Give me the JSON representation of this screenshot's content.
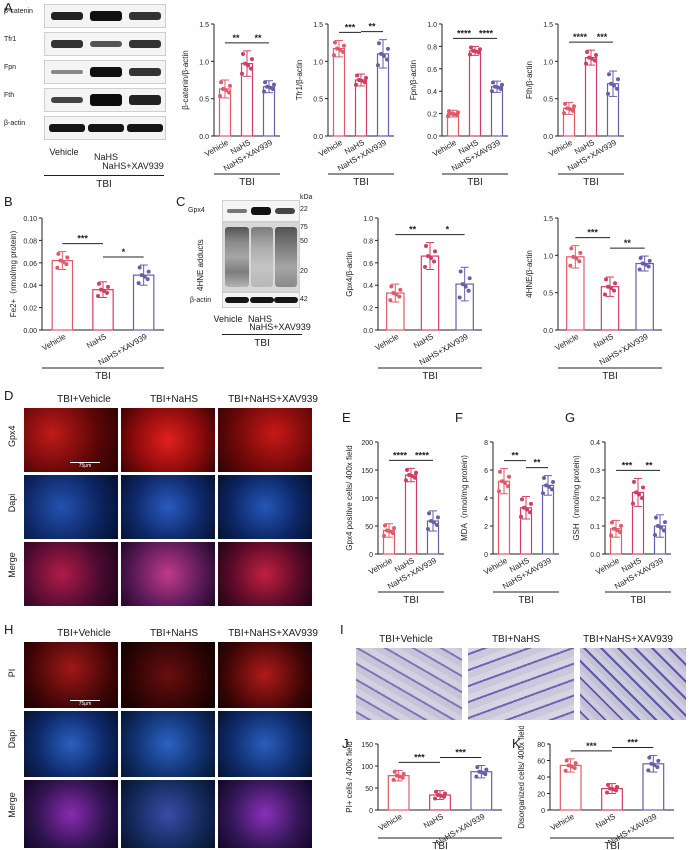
{
  "panel_letters": [
    "A",
    "B",
    "C",
    "D",
    "E",
    "F",
    "G",
    "H",
    "I",
    "J",
    "K"
  ],
  "groups": [
    "Vehicle",
    "NaHS",
    "NaHS+XAV939"
  ],
  "common_label": "TBI",
  "colors": {
    "vehicle": "#e05a6a",
    "nahs": "#d23d63",
    "xav": "#6b5ea8"
  },
  "blotA": {
    "rows": [
      "β-catenin",
      "Tfr1",
      "Fpn",
      "Fth",
      "β-actin"
    ],
    "lanes": [
      "Vehicle",
      "NaHS",
      "NaHS+XAV939"
    ],
    "group": "TBI"
  },
  "blotC": {
    "rows": [
      "Gpx4",
      "4HNE adducts",
      "β-actin"
    ],
    "kda_title": "kDa",
    "kda": [
      "22",
      "75",
      "50",
      "20",
      "42"
    ],
    "lanes": [
      "Vehicle",
      "NaHS",
      "NaHS+XAV939"
    ],
    "group": "TBI"
  },
  "panelD": {
    "cols": [
      "TBI+Vehicle",
      "TBI+NaHS",
      "TBI+NaHS+XAV939"
    ],
    "rows": [
      "Gpx4",
      "Dapi",
      "Merge"
    ],
    "scale": "75μm"
  },
  "panelH": {
    "cols": [
      "TBI+Vehicle",
      "TBI+NaHS",
      "TBI+NaHS+XAV939"
    ],
    "rows": [
      "PI",
      "Dapi",
      "Merge"
    ],
    "scale": "75μm"
  },
  "panelI": {
    "cols": [
      "TBI+Vehicle",
      "TBI+NaHS",
      "TBI+NaHS+XAV939"
    ]
  },
  "chart_data": [
    {
      "id": "A1",
      "type": "bar",
      "ylabel": "β-catenin/β-actin",
      "ylim": [
        0,
        1.5
      ],
      "ticks": [
        0.0,
        0.5,
        1.0,
        1.5
      ],
      "categories": [
        "Vehicle",
        "NaHS",
        "NaHS+XAV939"
      ],
      "values": [
        0.63,
        0.97,
        0.66
      ],
      "errors": [
        0.12,
        0.17,
        0.08
      ],
      "sig": [
        {
          "a": 0,
          "b": 1,
          "t": "**"
        },
        {
          "a": 1,
          "b": 2,
          "t": "**"
        }
      ],
      "group": "TBI"
    },
    {
      "id": "A2",
      "type": "bar",
      "ylabel": "Tfr1/β-actin",
      "ylim": [
        0,
        1.5
      ],
      "ticks": [
        0.0,
        0.5,
        1.0,
        1.5
      ],
      "categories": [
        "Vehicle",
        "NaHS",
        "NaHS+XAV939"
      ],
      "values": [
        1.17,
        0.75,
        1.1
      ],
      "errors": [
        0.11,
        0.08,
        0.19
      ],
      "sig": [
        {
          "a": 0,
          "b": 1,
          "t": "***"
        },
        {
          "a": 1,
          "b": 2,
          "t": "**"
        }
      ],
      "group": "TBI"
    },
    {
      "id": "A3",
      "type": "bar",
      "ylabel": "Fpn/β-actin",
      "ylim": [
        0,
        1.0
      ],
      "ticks": [
        0.0,
        0.2,
        0.4,
        0.6,
        0.8,
        1.0
      ],
      "categories": [
        "Vehicle",
        "NaHS",
        "NaHS+XAV939"
      ],
      "values": [
        0.2,
        0.76,
        0.44
      ],
      "errors": [
        0.03,
        0.04,
        0.05
      ],
      "sig": [
        {
          "a": 0,
          "b": 1,
          "t": "****"
        },
        {
          "a": 1,
          "b": 2,
          "t": "****"
        }
      ],
      "group": "TBI"
    },
    {
      "id": "A4",
      "type": "bar",
      "ylabel": "Fth/β-actin",
      "ylim": [
        0,
        1.5
      ],
      "ticks": [
        0.0,
        0.5,
        1.0,
        1.5
      ],
      "categories": [
        "Vehicle",
        "NaHS",
        "NaHS+XAV939"
      ],
      "values": [
        0.37,
        1.05,
        0.7
      ],
      "errors": [
        0.08,
        0.1,
        0.17
      ],
      "sig": [
        {
          "a": 0,
          "b": 1,
          "t": "****"
        },
        {
          "a": 1,
          "b": 2,
          "t": "***"
        }
      ],
      "group": "TBI"
    },
    {
      "id": "B",
      "type": "bar",
      "ylabel": "Fe2+（nmol/mg protein)",
      "ylim": [
        0,
        0.1
      ],
      "ticks": [
        0.0,
        0.02,
        0.04,
        0.06,
        0.08,
        0.1
      ],
      "categories": [
        "Vehicle",
        "NaHS",
        "NaHS+XAV939"
      ],
      "values": [
        0.062,
        0.036,
        0.049
      ],
      "errors": [
        0.008,
        0.007,
        0.009
      ],
      "sig": [
        {
          "a": 0,
          "b": 1,
          "t": "***"
        },
        {
          "a": 1,
          "b": 2,
          "t": "*"
        }
      ],
      "group": "TBI"
    },
    {
      "id": "C1",
      "type": "bar",
      "ylabel": "Gpx4/β-actin",
      "ylim": [
        0,
        1.0
      ],
      "ticks": [
        0.0,
        0.2,
        0.4,
        0.6,
        0.8,
        1.0
      ],
      "categories": [
        "Vehicle",
        "NaHS",
        "NaHS+XAV939"
      ],
      "values": [
        0.33,
        0.66,
        0.41
      ],
      "errors": [
        0.08,
        0.12,
        0.15
      ],
      "sig": [
        {
          "a": 0,
          "b": 1,
          "t": "**"
        },
        {
          "a": 1,
          "b": 2,
          "t": "*"
        }
      ],
      "group": "TBI"
    },
    {
      "id": "C2",
      "type": "bar",
      "ylabel": "4HNE/β-actin",
      "ylim": [
        0,
        1.5
      ],
      "ticks": [
        0.0,
        0.5,
        1.0,
        1.5
      ],
      "categories": [
        "Vehicle",
        "NaHS",
        "NaHS+XAV939"
      ],
      "values": [
        0.98,
        0.58,
        0.89
      ],
      "errors": [
        0.15,
        0.13,
        0.1
      ],
      "sig": [
        {
          "a": 0,
          "b": 1,
          "t": "***"
        },
        {
          "a": 1,
          "b": 2,
          "t": "**"
        }
      ],
      "group": "TBI"
    },
    {
      "id": "E",
      "type": "bar",
      "ylabel": "Gpx4 positive cells/ 400x field",
      "ylim": [
        0,
        200
      ],
      "ticks": [
        0,
        50,
        100,
        150,
        200
      ],
      "categories": [
        "Vehicle",
        "NaHS",
        "NaHS+XAV939"
      ],
      "values": [
        42,
        141,
        59
      ],
      "errors": [
        12,
        12,
        18
      ],
      "sig": [
        {
          "a": 0,
          "b": 1,
          "t": "****"
        },
        {
          "a": 1,
          "b": 2,
          "t": "****"
        }
      ],
      "group": "TBI"
    },
    {
      "id": "F",
      "type": "bar",
      "ylabel": "MDA（nmol/mg protein)",
      "ylim": [
        0,
        8
      ],
      "ticks": [
        0,
        2,
        4,
        6,
        8
      ],
      "categories": [
        "Vehicle",
        "NaHS",
        "NaHS+XAV939"
      ],
      "values": [
        5.2,
        3.3,
        4.9
      ],
      "errors": [
        0.9,
        0.8,
        0.7
      ],
      "sig": [
        {
          "a": 0,
          "b": 1,
          "t": "**"
        },
        {
          "a": 1,
          "b": 2,
          "t": "**"
        }
      ],
      "group": "TBI"
    },
    {
      "id": "G",
      "type": "bar",
      "ylabel": "GSH（nmol/mg protein)",
      "ylim": [
        0,
        0.4
      ],
      "ticks": [
        0.0,
        0.1,
        0.2,
        0.3,
        0.4
      ],
      "categories": [
        "Vehicle",
        "NaHS",
        "NaHS+XAV939"
      ],
      "values": [
        0.09,
        0.22,
        0.1
      ],
      "errors": [
        0.03,
        0.05,
        0.04
      ],
      "sig": [
        {
          "a": 0,
          "b": 1,
          "t": "***"
        },
        {
          "a": 1,
          "b": 2,
          "t": "**"
        }
      ],
      "group": "TBI"
    },
    {
      "id": "J",
      "type": "bar",
      "ylabel": "PI+ cells / 400x field",
      "ylim": [
        0,
        150
      ],
      "ticks": [
        0,
        50,
        100,
        150
      ],
      "categories": [
        "Vehicle",
        "NaHS",
        "NaHS+XAV939"
      ],
      "values": [
        78,
        34,
        87
      ],
      "errors": [
        12,
        10,
        14
      ],
      "sig": [
        {
          "a": 0,
          "b": 1,
          "t": "***"
        },
        {
          "a": 1,
          "b": 2,
          "t": "***"
        }
      ],
      "group": "TBI"
    },
    {
      "id": "K",
      "type": "bar",
      "ylabel": "Disorganized cells/ 400x field",
      "ylim": [
        0,
        80
      ],
      "ticks": [
        0,
        20,
        40,
        60,
        80
      ],
      "categories": [
        "Vehicle",
        "NaHS",
        "NaHS+XAV939"
      ],
      "values": [
        54,
        26,
        56
      ],
      "errors": [
        8,
        6,
        10
      ],
      "sig": [
        {
          "a": 0,
          "b": 1,
          "t": "***"
        },
        {
          "a": 1,
          "b": 2,
          "t": "***"
        }
      ],
      "group": "TBI"
    }
  ]
}
